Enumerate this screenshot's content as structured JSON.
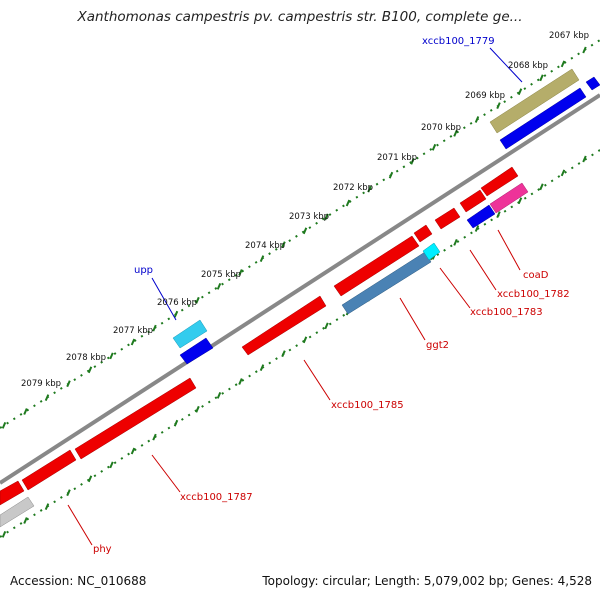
{
  "header": {
    "title": "Xanthomonas campestris pv. campestris str. B100, complete ge..."
  },
  "footer": {
    "accession": "Accession: NC_010688",
    "summary": "Topology: circular; Length: 5,079,002 bp; Genes: 4,528"
  },
  "colors": {
    "forward_gene": "#0000ee",
    "reverse_gene": "#ee0000",
    "cds_light": "#33ccee",
    "rna_cyan": "#00eeff",
    "steelblue": "#4a82b4",
    "khaki": "#b5ad6a",
    "magenta": "#ee3399",
    "gray_gene": "#c8c8c8",
    "backbone": "#8a8a8a",
    "tick_green": "#1f7a1f",
    "label_blue": "#0000cc",
    "label_red": "#cc0000"
  },
  "scale_labels": [
    "2067 kbp",
    "2068 kbp",
    "2069 kbp",
    "2070 kbp",
    "2071 kbp",
    "2072 kbp",
    "2073 kbp",
    "2074 kbp",
    "2075 kbp",
    "2076 kbp",
    "2077 kbp",
    "2078 kbp",
    "2079 kbp"
  ],
  "gene_labels": {
    "xccb100_1779": "xccb100_1779",
    "upp": "upp",
    "coaD": "coaD",
    "xccb100_1782": "xccb100_1782",
    "xccb100_1783": "xccb100_1783",
    "ggt2": "ggt2",
    "xccb100_1785": "xccb100_1785",
    "xccb100_1787": "xccb100_1787",
    "phy": "phy"
  }
}
